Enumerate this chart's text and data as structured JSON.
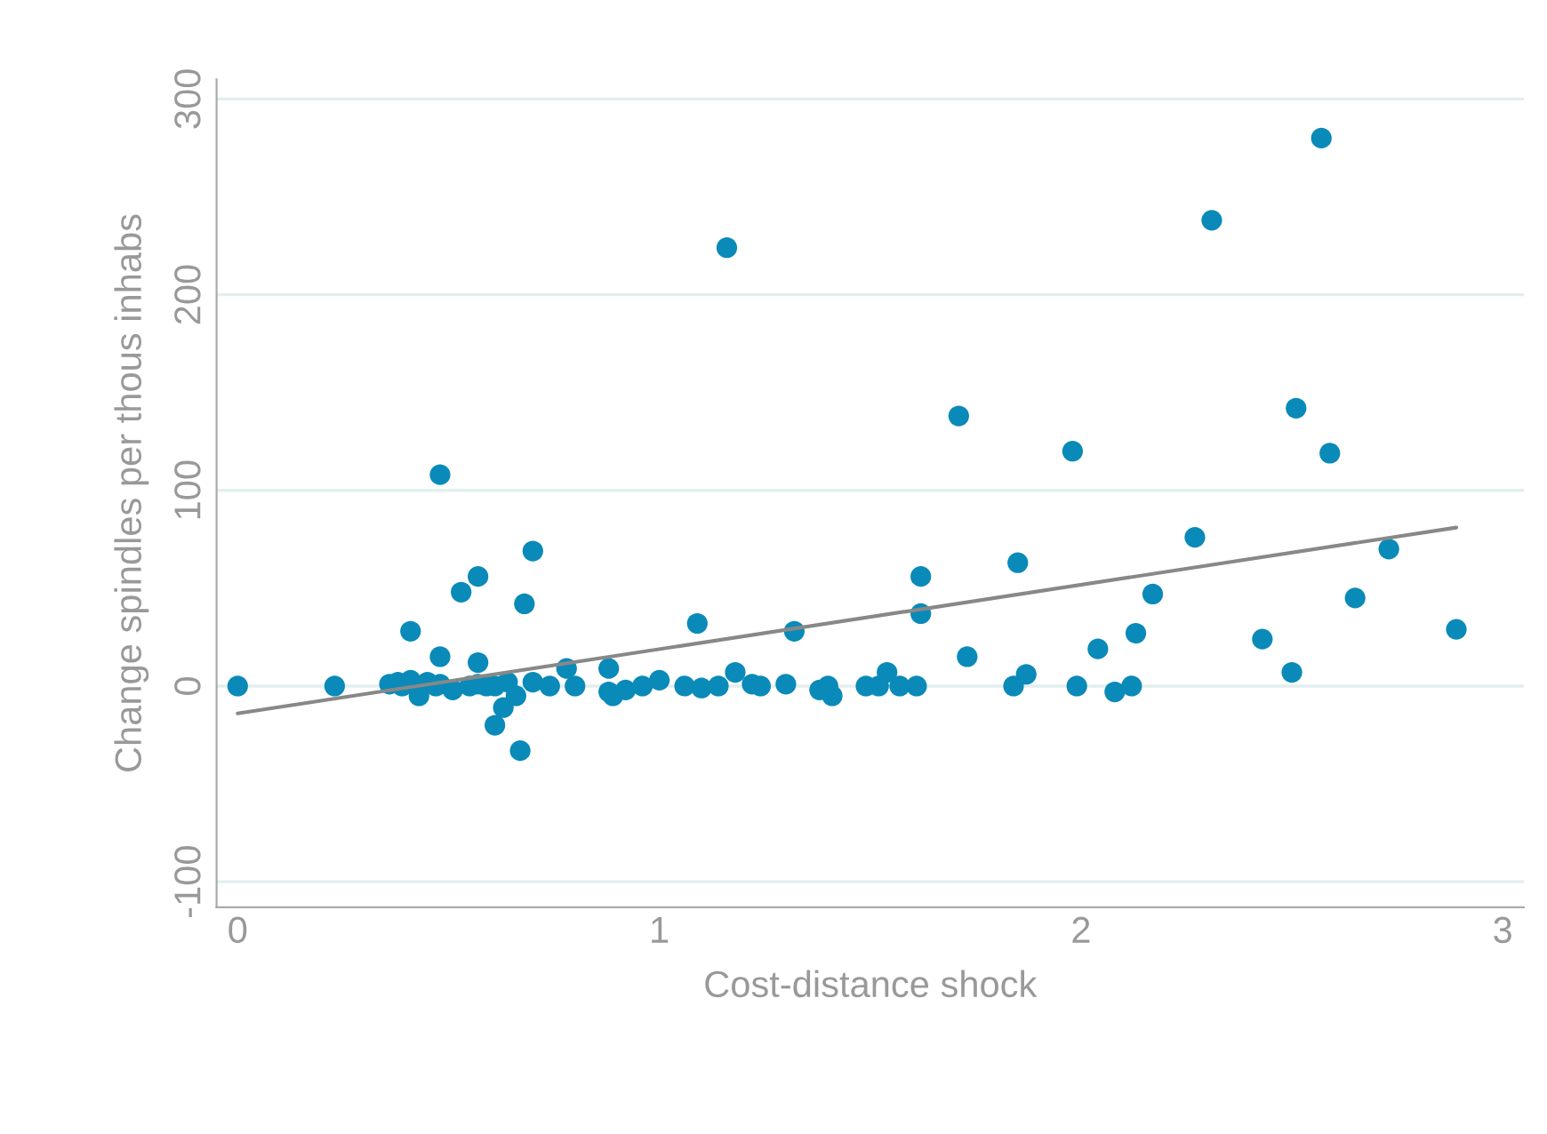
{
  "chart_data": {
    "type": "scatter",
    "xlabel": "Cost-distance shock",
    "ylabel": "Change spindles per thous inhabs",
    "xlim": [
      -0.05,
      3.05
    ],
    "xticks": [
      0,
      1,
      2,
      3
    ],
    "ylim": [
      -113,
      310
    ],
    "yticks": [
      -100,
      0,
      100,
      200,
      300
    ],
    "grid": "y",
    "legend": false,
    "marker": "circle",
    "series": [
      {
        "color": "#0a8ab8",
        "x": [
          0,
          0.23,
          0.36,
          0.38,
          0.39,
          0.41,
          0.43,
          0.45,
          0.47,
          0.48,
          0.51,
          0.55,
          0.57,
          0.59,
          0.61,
          0.64,
          0.41,
          0.48,
          0.48,
          0.53,
          0.57,
          0.57,
          0.68,
          0.7,
          0.61,
          0.63,
          0.66,
          0.67,
          0.7,
          0.74,
          0.78,
          0.8,
          0.88,
          0.88,
          0.89,
          0.92,
          0.96,
          1.0,
          1.06,
          1.09,
          1.1,
          1.14,
          1.16,
          1.18,
          1.22,
          1.24,
          1.3,
          1.32,
          1.38,
          1.4,
          1.41,
          1.49,
          1.52,
          1.54,
          1.57,
          1.61,
          1.62,
          1.62,
          1.73,
          1.71,
          1.84,
          1.85,
          1.87,
          1.98,
          1.99,
          2.04,
          2.08,
          2.12,
          2.13,
          2.17,
          2.27,
          2.31,
          2.43,
          2.5,
          2.51,
          2.59,
          2.65,
          2.57,
          2.73,
          2.89
        ],
        "values": [
          0,
          0,
          1,
          2,
          0,
          3,
          -5,
          2,
          0,
          1,
          -2,
          0,
          1,
          0,
          0,
          2,
          28,
          15,
          108,
          48,
          56,
          12,
          42,
          69,
          -20,
          -11,
          -5,
          -33,
          2,
          0,
          9,
          0,
          9,
          -3,
          -5,
          -2,
          0,
          3,
          0,
          32,
          -1,
          0,
          224,
          7,
          1,
          0,
          1,
          28,
          -2,
          0,
          -5,
          0,
          0,
          7,
          0,
          0,
          56,
          37,
          15,
          138,
          0,
          63,
          6,
          120,
          0,
          19,
          -3,
          0,
          27,
          47,
          76,
          238,
          24,
          7,
          142,
          119,
          45,
          280,
          70,
          29
        ]
      },
      {
        "type": "line",
        "color": "#888888",
        "marker": "none",
        "x": [
          0,
          2.89
        ],
        "values": [
          -14,
          81
        ]
      }
    ]
  }
}
